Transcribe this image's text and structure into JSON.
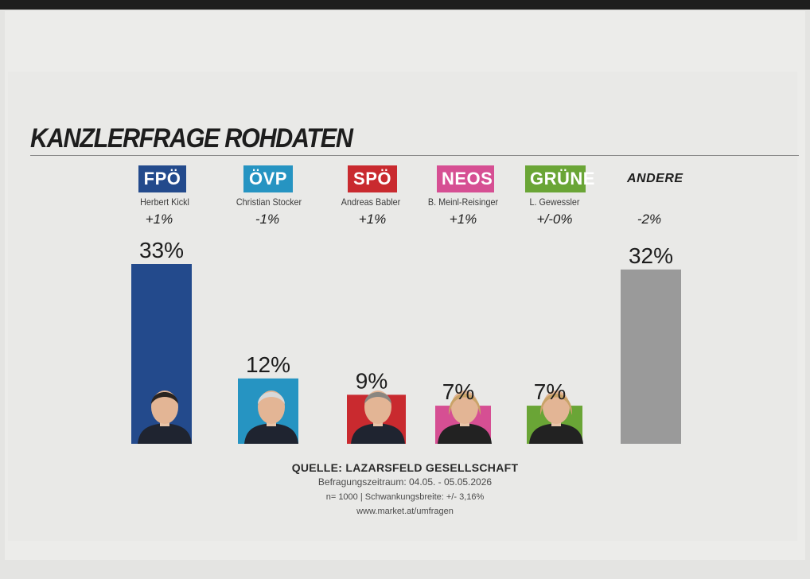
{
  "title": "KANZLERFRAGE ROHDATEN",
  "colors": {
    "FPÖ": "#234a8c",
    "ÖVP": "#2694c2",
    "SPÖ": "#c92a2f",
    "NEOS": "#d64f93",
    "GRÜNE": "#6aa536",
    "ANDERE": "#9a9a9a"
  },
  "chart_data": {
    "type": "bar",
    "title": "KANZLERFRAGE ROHDATEN",
    "categories": [
      "FPÖ",
      "ÖVP",
      "SPÖ",
      "NEOS",
      "GRÜNE",
      "ANDERE"
    ],
    "candidates": [
      "Herbert Kickl",
      "Christian Stocker",
      "Andreas Babler",
      "B. Meinl-Reisinger",
      "L. Gewessler",
      ""
    ],
    "changes": [
      "+1%",
      "-1%",
      "+1%",
      "+1%",
      "+/-0%",
      "-2%"
    ],
    "values": [
      33,
      12,
      9,
      7,
      7,
      32
    ],
    "value_labels": [
      "33%",
      "12%",
      "9%",
      "7%",
      "7%",
      "32%"
    ],
    "unit": "%",
    "ylim": [
      0,
      33
    ],
    "grid": false,
    "legend": "none"
  },
  "source": {
    "quelle": "QUELLE: LAZARSFELD GESELLSCHAFT",
    "period": "Befragungszeitraum: 04.05. - 05.05.2026",
    "sample": "n= 1000 | Schwankungsbreite: +/- 3,16%",
    "url": "www.market.at/umfragen"
  }
}
